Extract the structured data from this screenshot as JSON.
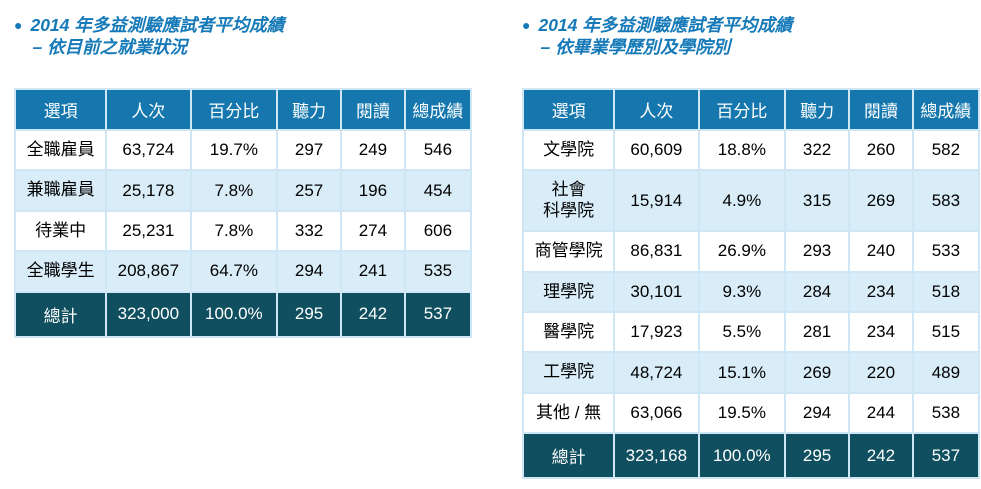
{
  "bullet_glyph": "●",
  "colors": {
    "header_bg": "#1577ad",
    "total_bg": "#0f4f5f",
    "stripe_bg": "#d9edf8",
    "border": "#cfe7f4",
    "title": "#1679b8"
  },
  "tables": [
    {
      "title_line1": "2014 年多益測驗應試者平均成績",
      "title_line2": "– 依目前之就業狀況",
      "headers": [
        "選項",
        "人次",
        "百分比",
        "聽力",
        "閱讀",
        "總成績"
      ],
      "rows": [
        [
          "全職雇員",
          "63,724",
          "19.7%",
          "297",
          "249",
          "546"
        ],
        [
          "兼職雇員",
          "25,178",
          "7.8%",
          "257",
          "196",
          "454"
        ],
        [
          "待業中",
          "25,231",
          "7.8%",
          "332",
          "274",
          "606"
        ],
        [
          "全職學生",
          "208,867",
          "64.7%",
          "294",
          "241",
          "535"
        ]
      ],
      "total_row": [
        "總計",
        "323,000",
        "100.0%",
        "295",
        "242",
        "537"
      ]
    },
    {
      "title_line1": "2014 年多益測驗應試者平均成績",
      "title_line2": "– 依畢業學歷別及學院別",
      "headers": [
        "選項",
        "人次",
        "百分比",
        "聽力",
        "閱讀",
        "總成績"
      ],
      "rows": [
        [
          "文學院",
          "60,609",
          "18.8%",
          "322",
          "260",
          "582"
        ],
        [
          "社會\n科學院",
          "15,914",
          "4.9%",
          "315",
          "269",
          "583"
        ],
        [
          "商管學院",
          "86,831",
          "26.9%",
          "293",
          "240",
          "533"
        ],
        [
          "理學院",
          "30,101",
          "9.3%",
          "284",
          "234",
          "518"
        ],
        [
          "醫學院",
          "17,923",
          "5.5%",
          "281",
          "234",
          "515"
        ],
        [
          "工學院",
          "48,724",
          "15.1%",
          "269",
          "220",
          "489"
        ],
        [
          "其他 / 無",
          "63,066",
          "19.5%",
          "294",
          "244",
          "538"
        ]
      ],
      "total_row": [
        "總計",
        "323,168",
        "100.0%",
        "295",
        "242",
        "537"
      ]
    }
  ]
}
